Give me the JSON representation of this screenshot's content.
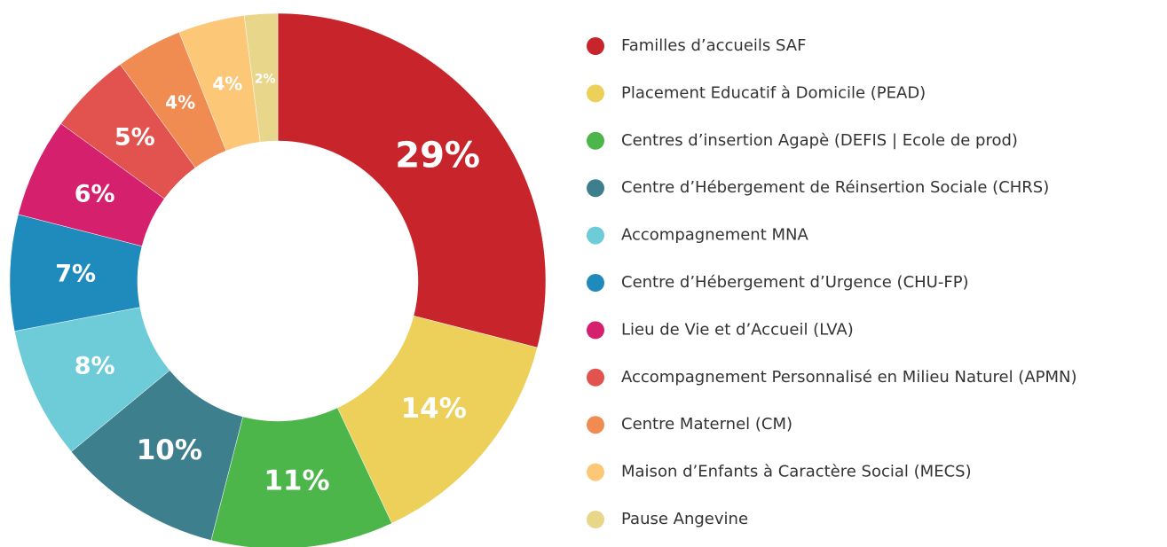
{
  "chart_data": {
    "type": "donut",
    "categories": [
      "Familles d’accueils SAF",
      "Placement Educatif à Domicile (PEAD)",
      "Centres d’insertion Agapè (DEFIS | Ecole de prod)",
      "Centre d’Hébergement de Réinsertion Sociale (CHRS)",
      "Accompagnement MNA",
      "Centre d’Hébergement d’Urgence (CHU-FP)",
      "Lieu de Vie et d’Accueil (LVA)",
      "Accompagnement Personnalisé en Milieu Naturel (APMN)",
      "Centre Maternel (CM)",
      "Maison d’Enfants à Caractère Social (MECS)",
      "Pause Angevine"
    ],
    "values": [
      29,
      14,
      11,
      10,
      8,
      7,
      6,
      5,
      4,
      4,
      2
    ],
    "value_labels": [
      "29%",
      "14%",
      "11%",
      "10%",
      "8%",
      "7%",
      "6%",
      "5%",
      "4%",
      "4%",
      "2%"
    ],
    "colors": [
      "#c8242b",
      "#ecd05a",
      "#4cb64a",
      "#3e7f8e",
      "#6ecbd8",
      "#1f8bbd",
      "#d4206d",
      "#e2534f",
      "#f08c52",
      "#fcc878",
      "#e8d68a"
    ],
    "legend": "right"
  }
}
